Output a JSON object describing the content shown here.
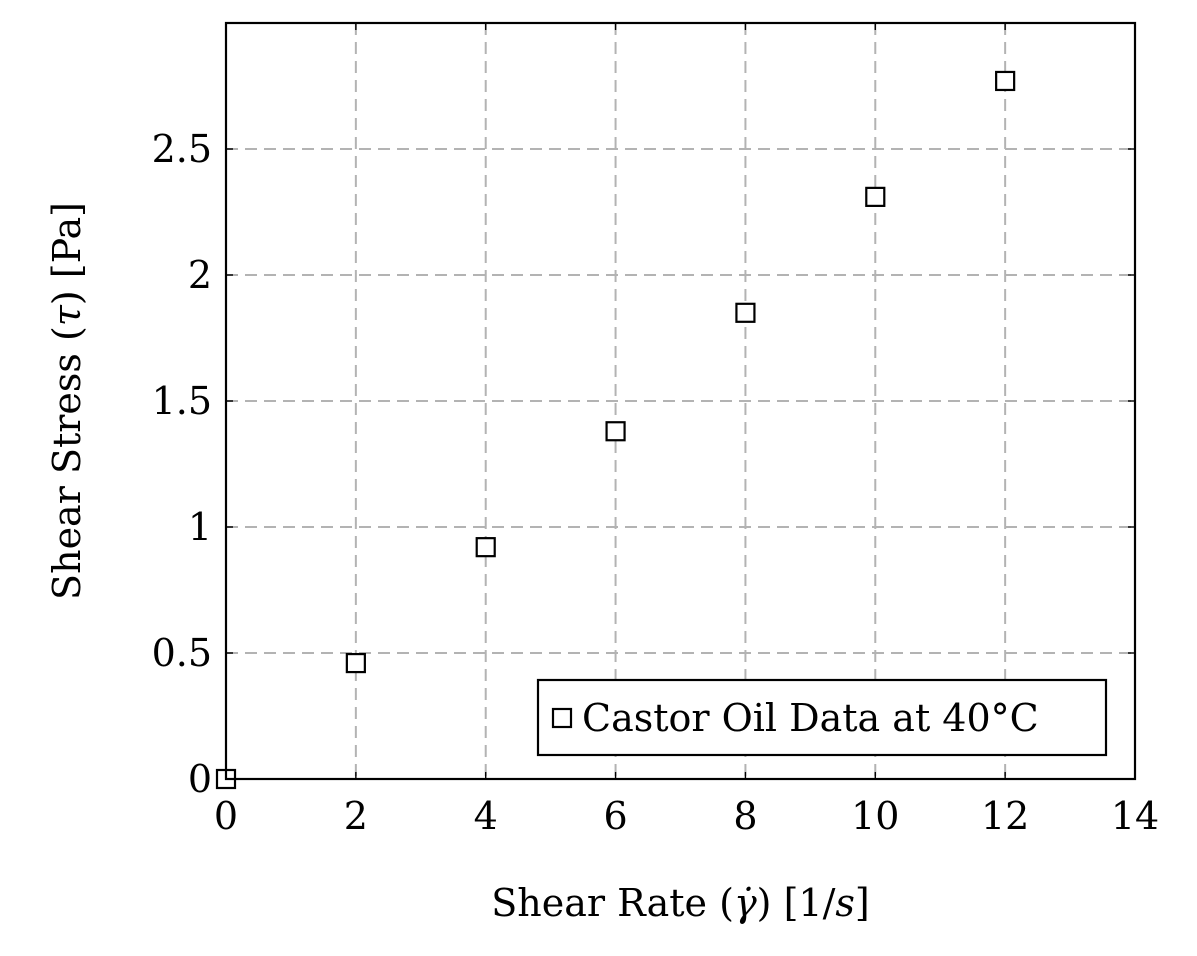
{
  "chart_data": {
    "type": "scatter",
    "title": "",
    "xlabel": "Shear Rate (γ̇) [1/s]",
    "xlabel_parts": {
      "prefix": "Shear Rate (",
      "symbol": "γ̇",
      "middle": ") [1/",
      "unit_var": "s",
      "suffix": "]"
    },
    "ylabel": "Shear Stress (τ) [Pa]",
    "ylabel_parts": {
      "prefix": "Shear Stress (",
      "symbol": "τ",
      "suffix": ") [Pa]"
    },
    "xlim": [
      0,
      14
    ],
    "ylim": [
      0,
      3.0
    ],
    "x_ticks": [
      0,
      2,
      4,
      6,
      8,
      10,
      12,
      14
    ],
    "x_tick_labels": [
      "0",
      "2",
      "4",
      "6",
      "8",
      "10",
      "12",
      "14"
    ],
    "y_ticks": [
      0,
      0.5,
      1,
      1.5,
      2,
      2.5
    ],
    "y_tick_labels": [
      "0",
      "0.5",
      "1",
      "1.5",
      "2",
      "2.5"
    ],
    "grid": true,
    "legend_position": "bottom-right",
    "series": [
      {
        "name": "Castor Oil Data at 40°C",
        "marker": "square",
        "color": "#000000",
        "x": [
          0,
          2,
          4,
          6,
          8,
          10,
          12
        ],
        "y": [
          0,
          0.46,
          0.92,
          1.38,
          1.85,
          2.31,
          2.77
        ]
      }
    ]
  },
  "colors": {
    "grid": "#b3b3b3",
    "axis": "#000000",
    "marker_fill": "#ffffff",
    "marker_stroke": "#000000"
  }
}
